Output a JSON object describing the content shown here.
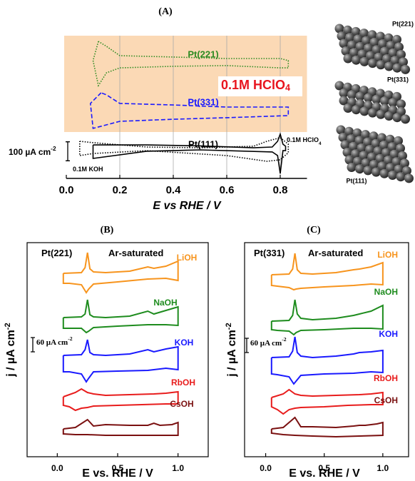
{
  "chart_data": [
    {
      "type": "line",
      "title": "(A)",
      "x_label": "E vs RHE / V",
      "xlim": [
        0,
        0.9
      ],
      "xticks": [
        {
          "value": 0,
          "label": "0.0"
        },
        0.2,
        0.4,
        0.6,
        0.8
      ],
      "ylim": [
        0,
        750
      ],
      "grid": true,
      "series": [
        {
          "name": "Pt(221)",
          "color": "#2e8b22",
          "dash": "dotted",
          "x": [
            0.12,
            0.1,
            0.12,
            0.15,
            0.2,
            0.4,
            0.6,
            0.8,
            0.83,
            0.83,
            0.8,
            0.6,
            0.4,
            0.2,
            0.15,
            0.12
          ],
          "values": [
            720,
            619,
            488,
            555,
            581,
            589,
            593,
            581,
            581,
            619,
            630,
            630,
            638,
            645,
            694,
            720
          ]
        },
        {
          "name": "Pt(331)",
          "color": "#1a1aff",
          "dash": "dashed",
          "x": [
            0.13,
            0.09,
            0.1,
            0.2,
            0.4,
            0.6,
            0.83,
            0.83,
            0.6,
            0.4,
            0.2,
            0.15,
            0.13
          ],
          "values": [
            450,
            394,
            263,
            300,
            311,
            319,
            330,
            375,
            375,
            386,
            394,
            439,
            450
          ]
        },
        {
          "name": "Pt(111)",
          "color": "#000000",
          "dash": "solid",
          "x": [
            0.1,
            0.3,
            0.5,
            0.7,
            0.77,
            0.79,
            0.8,
            0.81,
            0.82,
            0.82,
            0.81,
            0.8,
            0.79,
            0.77,
            0.5,
            0.3,
            0.1,
            0.1
          ],
          "values": [
            176,
            176,
            171,
            161,
            165,
            195,
            233,
            180,
            169,
            146,
            146,
            26,
            120,
            139,
            150,
            143,
            105,
            176
          ]
        },
        {
          "color": "#000000",
          "dash": "dotted",
          "x": [
            0.05,
            0.1,
            0.3,
            0.5,
            0.7,
            0.75,
            0.8,
            0.83,
            0.83,
            0.8,
            0.75,
            0.6,
            0.3,
            0.1,
            0.05,
            0.05
          ],
          "values": [
            195,
            188,
            165,
            161,
            169,
            195,
            214,
            180,
            135,
            98,
            90,
            120,
            146,
            131,
            120,
            195
          ]
        }
      ],
      "annotations": [
        {
          "text": "0.1M HClO",
          "sub": "4"
        },
        {
          "text": "0.1M HClO",
          "sub": "4"
        },
        {
          "text": "0.1M KOH"
        }
      ],
      "scale_bar": {
        "value": 100,
        "label": "100 µA cm",
        "sup": "-2"
      }
    },
    {
      "type": "line",
      "title": "(B)",
      "x_label": "E vs. RHE / V",
      "y_label": {
        "text": "j / µA cm",
        "sup": "-2"
      },
      "xlim": [
        -0.25,
        1.25
      ],
      "xticks": [
        {
          "value": 0,
          "label": "0.0"
        },
        0.5,
        {
          "value": 1,
          "label": "1.0"
        }
      ],
      "ylim": [
        0,
        900
      ],
      "annotations": [
        {
          "text": "Pt(221)"
        },
        {
          "text": "Ar-saturated"
        }
      ],
      "scale_bar": {
        "value": 60,
        "label": "60 µA cm",
        "sup": "-2"
      },
      "series": [
        {
          "name": "LiOH",
          "color": "#f7941d",
          "x": [
            0.05,
            0.2,
            0.23,
            0.25,
            0.27,
            0.3,
            0.4,
            0.6,
            0.75,
            0.8,
            0.9,
            1.0,
            1.0,
            0.9,
            0.75,
            0.5,
            0.3,
            0.26,
            0.24,
            0.2,
            0.1,
            0.05,
            0.05
          ],
          "values": [
            771,
            774,
            795,
            858,
            790,
            777,
            774,
            780,
            798,
            792,
            801,
            822,
            741,
            750,
            747,
            735,
            726,
            705,
            690,
            723,
            729,
            729,
            771
          ]
        },
        {
          "name": "NaOH",
          "color": "#1e8c1e",
          "x": [
            0.05,
            0.2,
            0.23,
            0.25,
            0.27,
            0.3,
            0.4,
            0.6,
            0.75,
            0.8,
            0.9,
            1.0,
            1.0,
            0.9,
            0.75,
            0.5,
            0.3,
            0.26,
            0.24,
            0.2,
            0.1,
            0.05,
            0.05
          ],
          "values": [
            585,
            588,
            600,
            660,
            597,
            588,
            585,
            591,
            612,
            600,
            615,
            630,
            552,
            555,
            555,
            549,
            543,
            528,
            522,
            540,
            540,
            540,
            585
          ]
        },
        {
          "name": "KOH",
          "color": "#1a1aff",
          "x": [
            0.05,
            0.2,
            0.23,
            0.25,
            0.27,
            0.3,
            0.4,
            0.6,
            0.75,
            0.8,
            0.9,
            1.0,
            1.0,
            0.9,
            0.75,
            0.5,
            0.3,
            0.26,
            0.24,
            0.2,
            0.1,
            0.05,
            0.05
          ],
          "values": [
            426,
            429,
            450,
            492,
            438,
            429,
            426,
            432,
            450,
            441,
            453,
            462,
            366,
            372,
            363,
            360,
            357,
            330,
            315,
            348,
            357,
            357,
            426
          ]
        },
        {
          "name": "RbOH",
          "color": "#e81c1c",
          "x": [
            0.05,
            0.15,
            0.2,
            0.25,
            0.3,
            0.4,
            0.6,
            0.8,
            0.9,
            1.0,
            1.0,
            0.9,
            0.7,
            0.5,
            0.3,
            0.25,
            0.2,
            0.15,
            0.1,
            0.05,
            0.05
          ],
          "values": [
            252,
            270,
            285,
            270,
            264,
            258,
            261,
            264,
            267,
            273,
            222,
            222,
            219,
            216,
            213,
            207,
            204,
            195,
            210,
            216,
            252
          ]
        },
        {
          "name": "CsOH",
          "color": "#7a1010",
          "x": [
            0.05,
            0.15,
            0.25,
            0.3,
            0.4,
            0.6,
            0.75,
            0.8,
            0.85,
            0.95,
            1.0,
            1.0,
            0.8,
            0.6,
            0.4,
            0.25,
            0.15,
            0.05,
            0.05
          ],
          "values": [
            117,
            123,
            156,
            129,
            135,
            132,
            132,
            141,
            132,
            135,
            144,
            90,
            90,
            90,
            90,
            93,
            93,
            96,
            117
          ]
        }
      ]
    },
    {
      "type": "line",
      "title": "(C)",
      "x_label": "E vs. RHE / V",
      "y_label": {
        "text": "j / µA cm",
        "sup": "-2"
      },
      "xlim": [
        -0.18,
        1.22
      ],
      "xticks": [
        {
          "value": 0,
          "label": "0.0"
        },
        0.5,
        {
          "value": 1,
          "label": "1.0"
        }
      ],
      "ylim": [
        0,
        900
      ],
      "annotations": [
        {
          "text": "Pt(331)"
        },
        {
          "text": "Ar-saturated"
        }
      ],
      "scale_bar": {
        "value": 60,
        "label": "60 µA cm",
        "sup": "-2"
      },
      "series": [
        {
          "name": "LiOH",
          "color": "#f7941d",
          "x": [
            0.05,
            0.2,
            0.23,
            0.25,
            0.27,
            0.3,
            0.4,
            0.6,
            0.75,
            0.8,
            0.9,
            1.0,
            1.0,
            0.9,
            0.75,
            0.5,
            0.3,
            0.26,
            0.24,
            0.2,
            0.1,
            0.05,
            0.05
          ],
          "values": [
            765,
            768,
            789,
            855,
            786,
            771,
            768,
            774,
            786,
            789,
            798,
            816,
            723,
            726,
            720,
            714,
            708,
            705,
            702,
            711,
            717,
            720,
            765
          ]
        },
        {
          "name": "NaOH",
          "color": "#1e8c1e",
          "x": [
            0.05,
            0.2,
            0.23,
            0.25,
            0.27,
            0.3,
            0.4,
            0.6,
            0.75,
            0.8,
            0.9,
            1.0,
            1.0,
            0.9,
            0.75,
            0.5,
            0.3,
            0.26,
            0.24,
            0.2,
            0.1,
            0.05,
            0.05
          ],
          "values": [
            570,
            573,
            594,
            660,
            600,
            582,
            576,
            582,
            594,
            600,
            612,
            636,
            537,
            540,
            540,
            534,
            531,
            522,
            513,
            528,
            531,
            534,
            570
          ]
        },
        {
          "name": "KOH",
          "color": "#1a1aff",
          "x": [
            0.05,
            0.2,
            0.23,
            0.25,
            0.27,
            0.3,
            0.4,
            0.6,
            0.75,
            0.8,
            0.9,
            1.0,
            1.0,
            0.9,
            0.75,
            0.5,
            0.3,
            0.26,
            0.24,
            0.2,
            0.1,
            0.05,
            0.05
          ],
          "values": [
            417,
            420,
            444,
            504,
            438,
            423,
            417,
            423,
            432,
            438,
            441,
            447,
            354,
            357,
            351,
            348,
            342,
            318,
            306,
            336,
            345,
            348,
            417
          ]
        },
        {
          "name": "RbOH",
          "color": "#e81c1c",
          "x": [
            0.05,
            0.15,
            0.2,
            0.25,
            0.3,
            0.4,
            0.6,
            0.8,
            0.9,
            1.0,
            1.0,
            0.9,
            0.7,
            0.5,
            0.3,
            0.25,
            0.2,
            0.15,
            0.1,
            0.05,
            0.05
          ],
          "values": [
            249,
            264,
            282,
            264,
            258,
            255,
            258,
            261,
            264,
            270,
            219,
            219,
            216,
            210,
            207,
            204,
            198,
            180,
            198,
            210,
            249
          ]
        },
        {
          "name": "CsOH",
          "color": "#7a1010",
          "x": [
            0.05,
            0.15,
            0.25,
            0.3,
            0.4,
            0.6,
            0.75,
            0.8,
            0.85,
            0.95,
            1.0,
            1.0,
            0.8,
            0.6,
            0.4,
            0.25,
            0.15,
            0.05,
            0.05
          ],
          "values": [
            117,
            123,
            165,
            126,
            126,
            123,
            129,
            132,
            132,
            138,
            144,
            90,
            87,
            84,
            87,
            90,
            93,
            99,
            117
          ]
        }
      ]
    }
  ],
  "models": [
    {
      "label": "Pt(221)"
    },
    {
      "label": "Pt(331)"
    },
    {
      "label": "Pt(111)"
    }
  ]
}
